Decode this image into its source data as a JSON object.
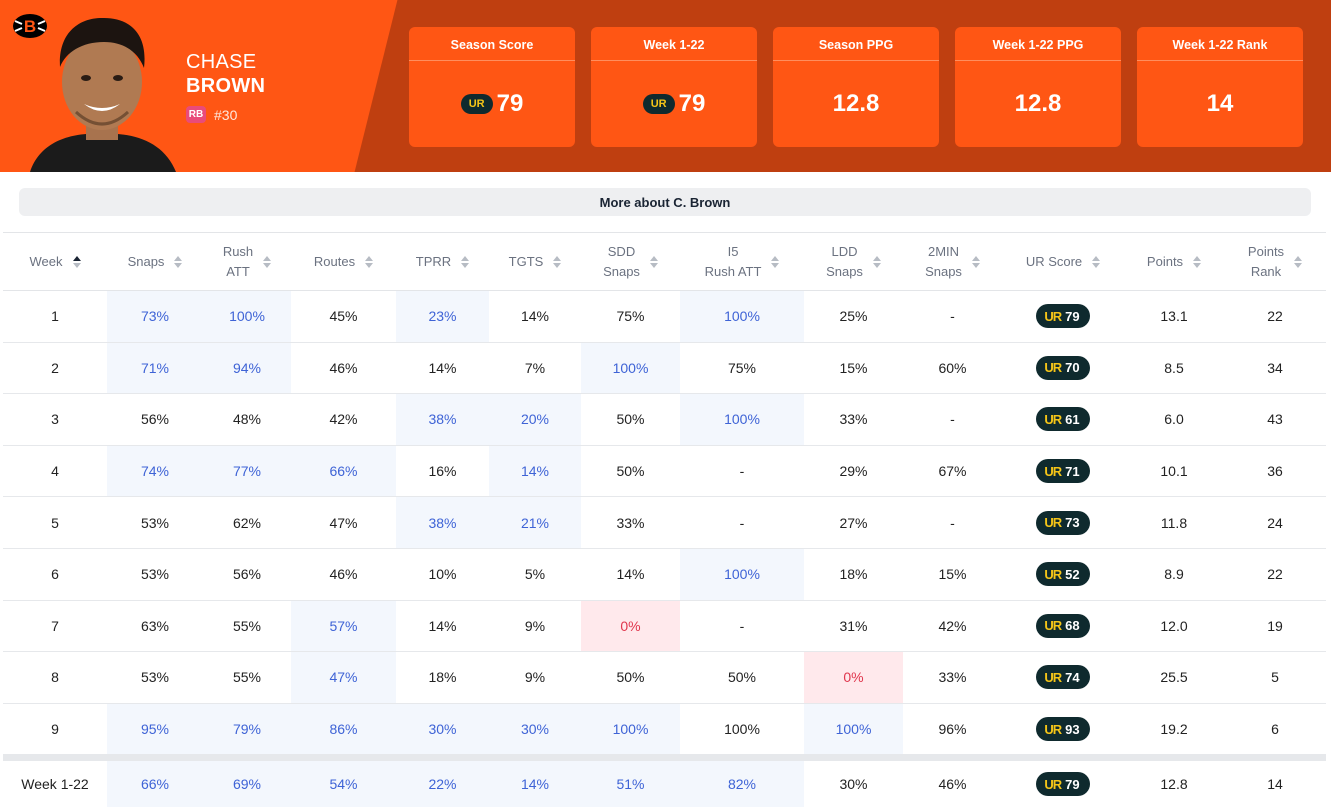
{
  "player": {
    "first_name": "CHASE",
    "last_name": "BROWN",
    "position": "RB",
    "jersey": "#30",
    "team_logo_icon": "bengals-logo-icon",
    "avatar_icon": "player-headshot"
  },
  "summary_cards": [
    {
      "title": "Season Score",
      "value": "79",
      "has_ur_badge": true
    },
    {
      "title": "Week 1-22",
      "value": "79",
      "has_ur_badge": true
    },
    {
      "title": "Season PPG",
      "value": "12.8",
      "has_ur_badge": false
    },
    {
      "title": "Week 1-22 PPG",
      "value": "12.8",
      "has_ur_badge": false
    },
    {
      "title": "Week 1-22 Rank",
      "value": "14",
      "has_ur_badge": false
    }
  ],
  "ur_badge_label": "UR",
  "more_button_label": "More about C. Brown",
  "columns": [
    "Week",
    "Snaps",
    "Rush ATT",
    "Routes",
    "TPRR",
    "TGTS",
    "SDD Snaps",
    "I5 Rush ATT",
    "LDD Snaps",
    "2MIN Snaps",
    "UR Score",
    "Points",
    "Points Rank"
  ],
  "header_lines": [
    [
      "Week"
    ],
    [
      "Snaps"
    ],
    [
      "Rush",
      "ATT"
    ],
    [
      "Routes"
    ],
    [
      "TPRR"
    ],
    [
      "TGTS"
    ],
    [
      "SDD",
      "Snaps"
    ],
    [
      "I5",
      "Rush ATT"
    ],
    [
      "LDD",
      "Snaps"
    ],
    [
      "2MIN",
      "Snaps"
    ],
    [
      "UR Score"
    ],
    [
      "Points"
    ],
    [
      "Points",
      "Rank"
    ]
  ],
  "sorted_column": "Week",
  "colors": {
    "header_orange": "#ff5614",
    "header_dark": "#bf3f10",
    "highlight_blue": "#3e63d6",
    "low_red": "#e0364d",
    "ur_badge_bg": "#0f2a2e",
    "ur_badge_mark": "#f5c518"
  },
  "rows": [
    {
      "week": "1",
      "cells": [
        "73%",
        "100%",
        "45%",
        "23%",
        "14%",
        "75%",
        "100%",
        "25%",
        "-"
      ],
      "flags": [
        "hl",
        "hl",
        "",
        "hl",
        "",
        "",
        "hl",
        "",
        ""
      ],
      "ur": "79",
      "points": "13.1",
      "rank": "22"
    },
    {
      "week": "2",
      "cells": [
        "71%",
        "94%",
        "46%",
        "14%",
        "7%",
        "100%",
        "75%",
        "15%",
        "60%"
      ],
      "flags": [
        "hl",
        "hl",
        "",
        "",
        "",
        "hl",
        "",
        "",
        ""
      ],
      "ur": "70",
      "points": "8.5",
      "rank": "34"
    },
    {
      "week": "3",
      "cells": [
        "56%",
        "48%",
        "42%",
        "38%",
        "20%",
        "50%",
        "100%",
        "33%",
        "-"
      ],
      "flags": [
        "",
        "",
        "",
        "hl",
        "hl",
        "",
        "hl",
        "",
        ""
      ],
      "ur": "61",
      "points": "6.0",
      "rank": "43"
    },
    {
      "week": "4",
      "cells": [
        "74%",
        "77%",
        "66%",
        "16%",
        "14%",
        "50%",
        "-",
        "29%",
        "67%"
      ],
      "flags": [
        "hl",
        "hl",
        "hl",
        "",
        "hl",
        "",
        "",
        "",
        ""
      ],
      "ur": "71",
      "points": "10.1",
      "rank": "36"
    },
    {
      "week": "5",
      "cells": [
        "53%",
        "62%",
        "47%",
        "38%",
        "21%",
        "33%",
        "-",
        "27%",
        "-"
      ],
      "flags": [
        "",
        "",
        "",
        "hl",
        "hl",
        "",
        "",
        "",
        ""
      ],
      "ur": "73",
      "points": "11.8",
      "rank": "24"
    },
    {
      "week": "6",
      "cells": [
        "53%",
        "56%",
        "46%",
        "10%",
        "5%",
        "14%",
        "100%",
        "18%",
        "15%"
      ],
      "flags": [
        "",
        "",
        "",
        "",
        "",
        "",
        "hl",
        "",
        ""
      ],
      "ur": "52",
      "points": "8.9",
      "rank": "22"
    },
    {
      "week": "7",
      "cells": [
        "63%",
        "55%",
        "57%",
        "14%",
        "9%",
        "0%",
        "-",
        "31%",
        "42%"
      ],
      "flags": [
        "",
        "",
        "hl",
        "",
        "",
        "bad",
        "",
        "",
        ""
      ],
      "ur": "68",
      "points": "12.0",
      "rank": "19"
    },
    {
      "week": "8",
      "cells": [
        "53%",
        "55%",
        "47%",
        "18%",
        "9%",
        "50%",
        "50%",
        "0%",
        "33%"
      ],
      "flags": [
        "",
        "",
        "hl",
        "",
        "",
        "",
        "",
        "bad",
        ""
      ],
      "ur": "74",
      "points": "25.5",
      "rank": "5"
    },
    {
      "week": "9",
      "cells": [
        "95%",
        "79%",
        "86%",
        "30%",
        "30%",
        "100%",
        "100%",
        "100%",
        "96%"
      ],
      "flags": [
        "hl",
        "hl",
        "hl",
        "hl",
        "hl",
        "hl",
        "",
        "hl",
        ""
      ],
      "ur": "93",
      "points": "19.2",
      "rank": "6"
    }
  ],
  "total": {
    "week": "Week 1-22",
    "cells": [
      "66%",
      "69%",
      "54%",
      "22%",
      "14%",
      "51%",
      "82%",
      "30%",
      "46%"
    ],
    "flags": [
      "hl",
      "hl",
      "hl",
      "hl",
      "hl",
      "hl",
      "hl",
      "",
      ""
    ],
    "ur": "79",
    "points": "12.8",
    "rank": "14"
  }
}
